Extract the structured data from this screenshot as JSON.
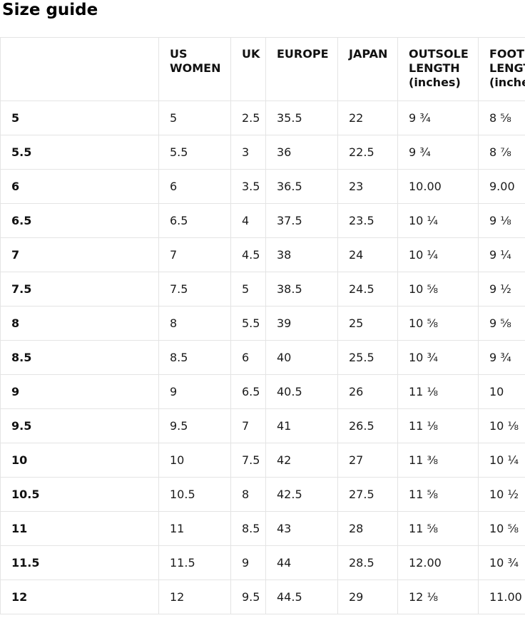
{
  "title": "Size guide",
  "table": {
    "headers": [
      "",
      "US WOMEN",
      "UK",
      "EUROPE",
      "JAPAN",
      "OUTSOLE LENGTH (inches)",
      "FOOT LENGTH (inches)"
    ],
    "column_keys": [
      "size",
      "us_women",
      "uk",
      "europe",
      "japan",
      "outsole_length",
      "foot_length"
    ],
    "rows": [
      {
        "size": "5",
        "us_women": "5",
        "uk": "2.5",
        "europe": "35.5",
        "japan": "22",
        "outsole_length": "9 ¾",
        "foot_length": "8 ⅝"
      },
      {
        "size": "5.5",
        "us_women": "5.5",
        "uk": "3",
        "europe": "36",
        "japan": "22.5",
        "outsole_length": "9 ¾",
        "foot_length": "8 ⅞"
      },
      {
        "size": "6",
        "us_women": "6",
        "uk": "3.5",
        "europe": "36.5",
        "japan": "23",
        "outsole_length": "10.00",
        "foot_length": "9.00"
      },
      {
        "size": "6.5",
        "us_women": "6.5",
        "uk": "4",
        "europe": "37.5",
        "japan": "23.5",
        "outsole_length": "10 ¼",
        "foot_length": "9 ⅛"
      },
      {
        "size": "7",
        "us_women": "7",
        "uk": "4.5",
        "europe": "38",
        "japan": "24",
        "outsole_length": "10 ¼",
        "foot_length": "9 ¼"
      },
      {
        "size": "7.5",
        "us_women": "7.5",
        "uk": "5",
        "europe": "38.5",
        "japan": "24.5",
        "outsole_length": "10 ⅝",
        "foot_length": "9 ½"
      },
      {
        "size": "8",
        "us_women": "8",
        "uk": "5.5",
        "europe": "39",
        "japan": "25",
        "outsole_length": "10 ⅝",
        "foot_length": "9 ⅝"
      },
      {
        "size": "8.5",
        "us_women": "8.5",
        "uk": "6",
        "europe": "40",
        "japan": "25.5",
        "outsole_length": "10 ¾",
        "foot_length": "9 ¾"
      },
      {
        "size": "9",
        "us_women": "9",
        "uk": "6.5",
        "europe": "40.5",
        "japan": "26",
        "outsole_length": "11 ⅛",
        "foot_length": "10"
      },
      {
        "size": "9.5",
        "us_women": "9.5",
        "uk": "7",
        "europe": "41",
        "japan": "26.5",
        "outsole_length": "11 ⅛",
        "foot_length": "10 ⅛"
      },
      {
        "size": "10",
        "us_women": "10",
        "uk": "7.5",
        "europe": "42",
        "japan": "27",
        "outsole_length": "11 ⅜",
        "foot_length": "10 ¼"
      },
      {
        "size": "10.5",
        "us_women": "10.5",
        "uk": "8",
        "europe": "42.5",
        "japan": "27.5",
        "outsole_length": "11 ⅝",
        "foot_length": "10 ½"
      },
      {
        "size": "11",
        "us_women": "11",
        "uk": "8.5",
        "europe": "43",
        "japan": "28",
        "outsole_length": "11 ⅝",
        "foot_length": "10 ⅝"
      },
      {
        "size": "11.5",
        "us_women": "11.5",
        "uk": "9",
        "europe": "44",
        "japan": "28.5",
        "outsole_length": "12.00",
        "foot_length": "10 ¾"
      },
      {
        "size": "12",
        "us_women": "12",
        "uk": "9.5",
        "europe": "44.5",
        "japan": "29",
        "outsole_length": "12 ⅛",
        "foot_length": "11.00"
      }
    ],
    "colors": {
      "border": "#e4e4e4",
      "text": "#1b1b1b",
      "heading_text": "#000000",
      "background": "#ffffff"
    }
  }
}
